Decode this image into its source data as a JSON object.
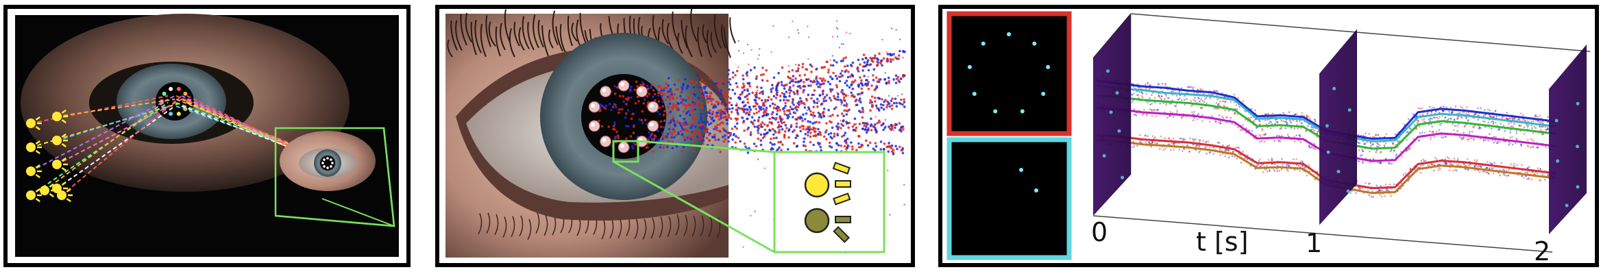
{
  "panels": {
    "left": {
      "lights_left": 8,
      "lights_bottom": 3
    },
    "middle": {
      "legend_icons": [
        "sun-icon-bright",
        "sun-icon-dim"
      ]
    },
    "right": {
      "axis_label": "t [s]",
      "ticks": [
        "0",
        "1",
        "2"
      ],
      "thumb_top_border": "#d8322a",
      "thumb_bottom_border": "#5fd6e0"
    }
  },
  "colors": {
    "frame": "#000000",
    "highlight_green": "#77e35a",
    "point_red": "#e0231c",
    "point_blue": "#1a2ce0",
    "slab": "#3b0d5c",
    "light_yellow": "#ffe838"
  },
  "chart_data": {
    "type": "line",
    "x": [
      0,
      0.1,
      0.2,
      0.3,
      0.4,
      0.5,
      0.6,
      0.7,
      0.8,
      0.9,
      1.0,
      1.1,
      1.2,
      1.3,
      1.4,
      1.5,
      1.6,
      1.7,
      1.8,
      1.9,
      2.0
    ],
    "xlabel": "t [s]",
    "xticks": [
      "0",
      "1",
      "2"
    ],
    "series": [
      {
        "color": "#1f2fd0",
        "values": [
          0.9,
          0.89,
          0.88,
          0.88,
          0.87,
          0.87,
          0.84,
          0.7,
          0.72,
          0.72,
          0.62,
          0.6,
          0.58,
          0.6,
          0.82,
          0.86,
          0.86,
          0.85,
          0.84,
          0.83,
          0.82
        ]
      },
      {
        "color": "#35b6c8",
        "values": [
          0.86,
          0.85,
          0.85,
          0.84,
          0.84,
          0.84,
          0.82,
          0.68,
          0.7,
          0.7,
          0.6,
          0.58,
          0.56,
          0.58,
          0.78,
          0.82,
          0.82,
          0.81,
          0.8,
          0.79,
          0.78
        ]
      },
      {
        "color": "#2eb82e",
        "values": [
          0.78,
          0.78,
          0.77,
          0.77,
          0.77,
          0.76,
          0.74,
          0.62,
          0.64,
          0.64,
          0.54,
          0.52,
          0.5,
          0.52,
          0.72,
          0.76,
          0.76,
          0.75,
          0.74,
          0.73,
          0.72
        ]
      },
      {
        "color": "#c21ec2",
        "values": [
          0.68,
          0.68,
          0.67,
          0.67,
          0.67,
          0.66,
          0.64,
          0.52,
          0.54,
          0.54,
          0.44,
          0.42,
          0.4,
          0.42,
          0.62,
          0.66,
          0.66,
          0.65,
          0.64,
          0.63,
          0.62
        ]
      },
      {
        "color": "#d5303a",
        "values": [
          0.46,
          0.46,
          0.45,
          0.45,
          0.45,
          0.44,
          0.42,
          0.32,
          0.34,
          0.34,
          0.22,
          0.2,
          0.18,
          0.2,
          0.4,
          0.44,
          0.44,
          0.43,
          0.42,
          0.41,
          0.4
        ]
      },
      {
        "color": "#c0781f",
        "values": [
          0.42,
          0.42,
          0.41,
          0.41,
          0.41,
          0.4,
          0.38,
          0.28,
          0.3,
          0.3,
          0.18,
          0.16,
          0.14,
          0.16,
          0.36,
          0.4,
          0.4,
          0.39,
          0.38,
          0.37,
          0.36
        ]
      }
    ]
  }
}
